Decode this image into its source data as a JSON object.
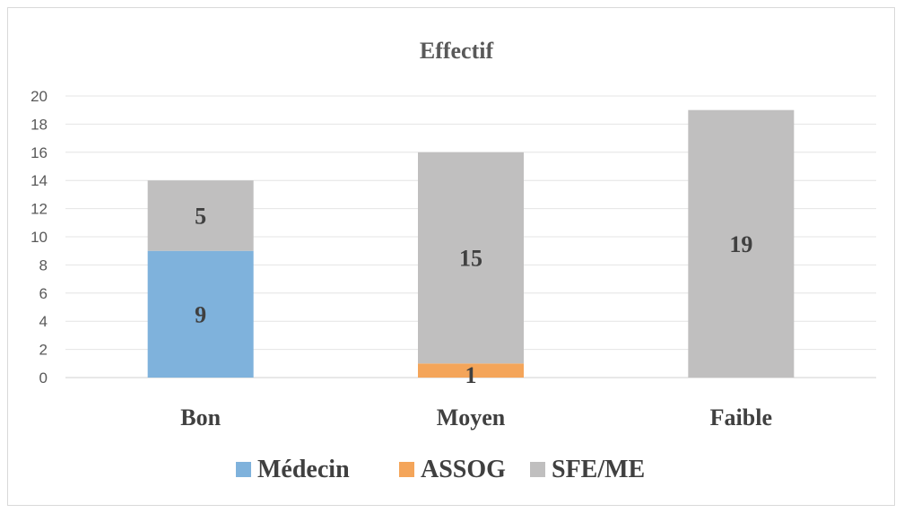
{
  "chart_data": {
    "type": "bar",
    "stacked": true,
    "title": "Effectif",
    "xlabel": "",
    "ylabel": "",
    "categories": [
      "Bon",
      "Moyen",
      "Faible"
    ],
    "series": [
      {
        "name": "Médecin",
        "values": [
          9,
          0,
          0
        ],
        "labels": [
          "9",
          "",
          ""
        ],
        "color": "#7fb2dc"
      },
      {
        "name": "ASSOG",
        "values": [
          0,
          1,
          0
        ],
        "labels": [
          "",
          "1",
          ""
        ],
        "color": "#f4a55a"
      },
      {
        "name": "SFE/ME",
        "values": [
          5,
          15,
          19
        ],
        "labels": [
          "5",
          "15",
          "19"
        ],
        "color": "#c0bfbf"
      }
    ],
    "ylim": [
      0,
      20
    ],
    "yticks": [
      "0",
      "2",
      "4",
      "6",
      "8",
      "10",
      "12",
      "14",
      "16",
      "18",
      "20"
    ],
    "grid": true,
    "legend_position": "bottom"
  }
}
